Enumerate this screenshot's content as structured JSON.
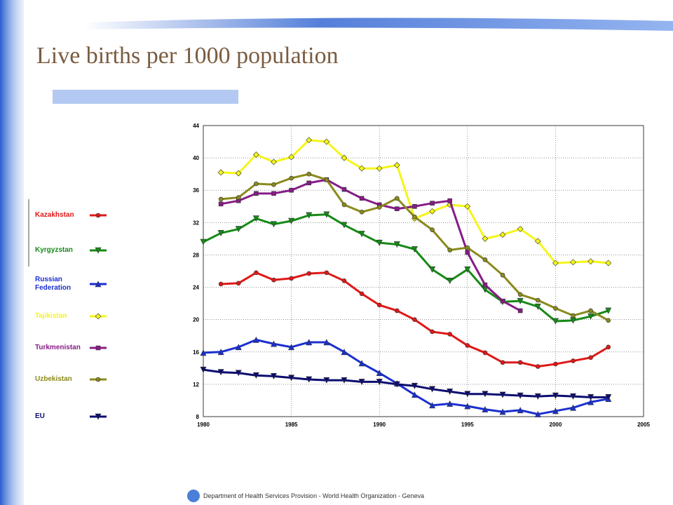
{
  "chart_data": {
    "type": "line",
    "title": "Live births per 1000 population",
    "footer": "Department of Health Services Provision - World Health Organization - Geneva",
    "x": [
      1980,
      1981,
      1982,
      1983,
      1984,
      1985,
      1986,
      1987,
      1988,
      1989,
      1990,
      1991,
      1992,
      1993,
      1994,
      1995,
      1996,
      1997,
      1998,
      1999,
      2000,
      2001,
      2002,
      2003
    ],
    "xlim": [
      1980,
      2005
    ],
    "xticks": [
      1980,
      1985,
      1990,
      1995,
      2000,
      2005
    ],
    "ylim": [
      8,
      44
    ],
    "yticks": [
      8,
      12,
      16,
      20,
      24,
      28,
      32,
      36,
      40,
      44
    ],
    "grid": true,
    "series": [
      {
        "name": "Kazakhstan",
        "color": "#e01818",
        "marker": "circle",
        "values": [
          null,
          24.4,
          24.5,
          25.8,
          24.9,
          25.1,
          25.7,
          25.8,
          24.8,
          23.2,
          21.8,
          21.1,
          20.0,
          18.5,
          18.2,
          16.8,
          15.9,
          14.7,
          14.7,
          14.2,
          14.5,
          14.9,
          15.3,
          16.6
        ]
      },
      {
        "name": "Kyrgyzstan",
        "color": "#168a16",
        "marker": "triangle-down",
        "values": [
          29.6,
          30.7,
          31.2,
          32.5,
          31.8,
          32.2,
          32.9,
          33.0,
          31.7,
          30.6,
          29.5,
          29.3,
          28.7,
          26.2,
          24.8,
          26.2,
          23.7,
          22.2,
          22.3,
          21.6,
          19.8,
          19.9,
          20.4,
          21.1
        ]
      },
      {
        "name": "Russian Federation",
        "color": "#1a2fd0",
        "marker": "triangle-up",
        "values": [
          15.9,
          16.0,
          16.6,
          17.5,
          17.0,
          16.6,
          17.2,
          17.2,
          16.0,
          14.6,
          13.4,
          12.1,
          10.7,
          9.4,
          9.6,
          9.3,
          8.9,
          8.6,
          8.8,
          8.3,
          8.7,
          9.1,
          9.8,
          10.2
        ]
      },
      {
        "name": "Tajikistan",
        "color": "#f5f51a",
        "marker": "diamond",
        "values": [
          null,
          38.2,
          38.1,
          40.4,
          39.5,
          40.1,
          42.2,
          42.0,
          40.0,
          38.7,
          38.7,
          39.1,
          32.5,
          33.4,
          34.2,
          34.0,
          30.0,
          30.5,
          31.2,
          29.7,
          27.0,
          27.1,
          27.2,
          27.0
        ]
      },
      {
        "name": "Turkmenistan",
        "color": "#861c86",
        "marker": "square",
        "values": [
          null,
          34.3,
          34.7,
          35.6,
          35.6,
          36.0,
          36.9,
          37.3,
          36.1,
          35.0,
          34.2,
          33.7,
          34.0,
          34.4,
          34.7,
          28.3,
          24.3,
          22.3,
          21.1,
          null,
          null,
          null,
          null,
          null
        ]
      },
      {
        "name": "Uzbekistan",
        "color": "#8a8a1c",
        "marker": "circle",
        "values": [
          null,
          34.9,
          35.1,
          36.8,
          36.7,
          37.5,
          38.0,
          37.3,
          34.2,
          33.3,
          33.9,
          35.0,
          32.7,
          31.1,
          28.6,
          28.9,
          27.4,
          25.5,
          23.1,
          22.4,
          21.4,
          20.5,
          21.1,
          19.9
        ]
      },
      {
        "name": "EU",
        "color": "#0c0c70",
        "marker": "triangle-down",
        "values": [
          13.8,
          13.5,
          13.4,
          13.1,
          13.0,
          12.8,
          12.6,
          12.5,
          12.5,
          12.3,
          12.3,
          12.0,
          11.8,
          11.4,
          11.1,
          10.8,
          10.8,
          10.7,
          10.6,
          10.5,
          10.6,
          10.5,
          10.4,
          10.4
        ]
      }
    ]
  }
}
